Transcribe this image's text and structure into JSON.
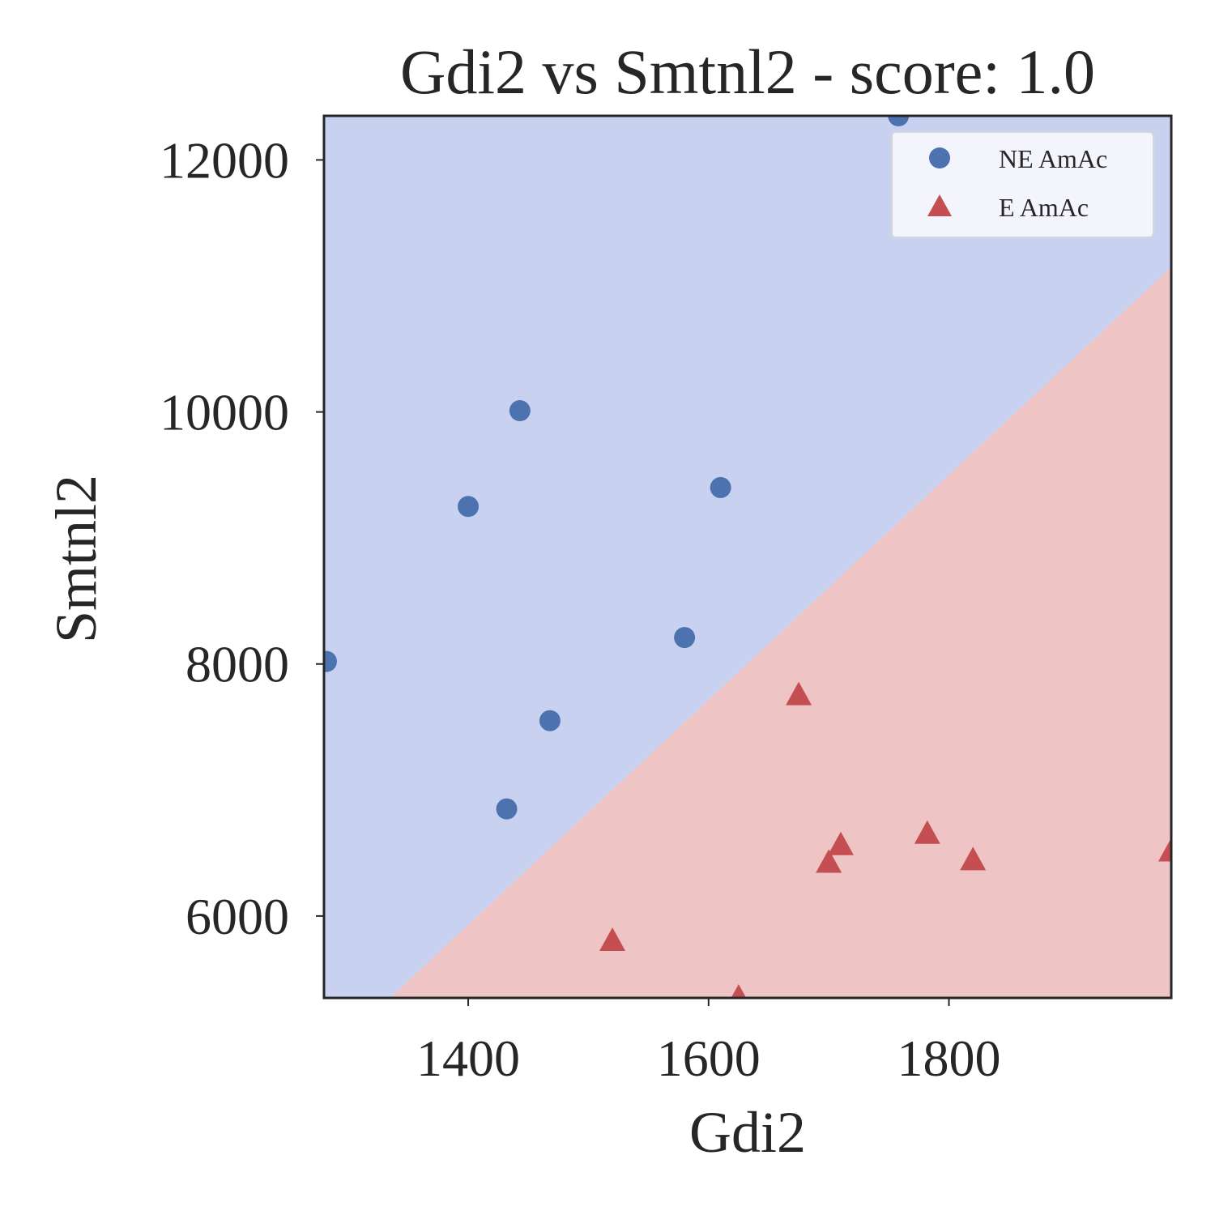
{
  "chart_data": {
    "type": "scatter",
    "title": "Gdi2 vs Smtnl2 - score: 1.0",
    "xlabel": "Gdi2",
    "ylabel": "Smtnl2",
    "xlim": [
      1280,
      1985
    ],
    "ylim": [
      5350,
      12350
    ],
    "xticks": [
      1400,
      1600,
      1800
    ],
    "yticks": [
      6000,
      8000,
      10000,
      12000
    ],
    "grid": false,
    "legend_position": "top-right",
    "decision_boundary": {
      "points": [
        [
          1335,
          5350
        ],
        [
          1985,
          11150
        ]
      ],
      "region_above_color": "#c9d1f1",
      "region_below_color": "#eec4c4"
    },
    "series": [
      {
        "name": "NE AmAc",
        "marker": "circle",
        "color": "#4c72b0",
        "points": [
          [
            1282,
            8020
          ],
          [
            1400,
            9250
          ],
          [
            1443,
            10010
          ],
          [
            1432,
            6850
          ],
          [
            1468,
            7550
          ],
          [
            1580,
            8210
          ],
          [
            1610,
            9400
          ],
          [
            1758,
            12350
          ]
        ]
      },
      {
        "name": "E AmAc",
        "marker": "triangle",
        "color": "#c44e52",
        "points": [
          [
            1520,
            5800
          ],
          [
            1625,
            5350
          ],
          [
            1675,
            7750
          ],
          [
            1700,
            6420
          ],
          [
            1710,
            6560
          ],
          [
            1782,
            6650
          ],
          [
            1820,
            6440
          ],
          [
            1985,
            6510
          ]
        ]
      }
    ]
  }
}
